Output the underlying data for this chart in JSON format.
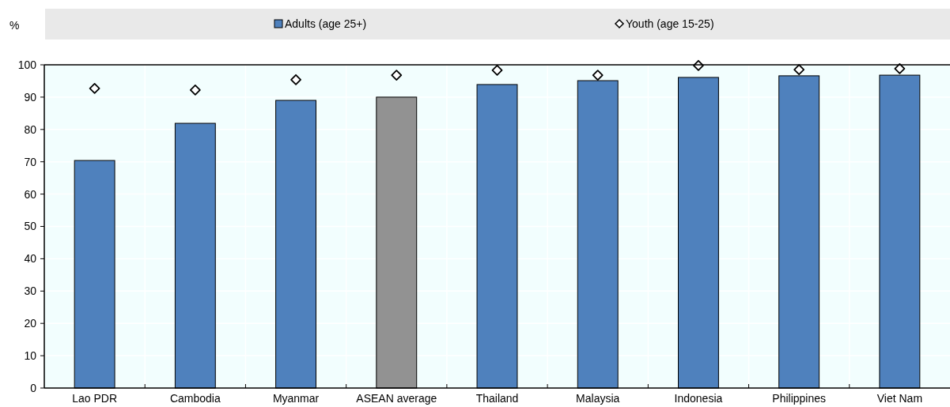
{
  "chart_data": {
    "type": "bar",
    "ylabel": "%",
    "categories": [
      "Lao PDR",
      "Cambodia",
      "Myanmar",
      "ASEAN average",
      "Thailand",
      "Malaysia",
      "Indonesia",
      "Philippines",
      "Viet Nam"
    ],
    "series": [
      {
        "name": "Adults (age 25+)",
        "color": "#4f81bd",
        "colors": [
          "#4f81bd",
          "#4f81bd",
          "#4f81bd",
          "#929292",
          "#4f81bd",
          "#4f81bd",
          "#4f81bd",
          "#4f81bd",
          "#4f81bd"
        ],
        "values": [
          70.4,
          81.9,
          89.0,
          90.0,
          93.9,
          95.1,
          96.1,
          96.6,
          96.8
        ]
      },
      {
        "name": "Youth (age 15-25)",
        "type": "scatter",
        "marker": "diamond",
        "color": "#ffffff",
        "x": [
          "Lao PDR",
          "Cambodia",
          "Myanmar",
          "ASEAN average",
          "Thailand",
          "Malaysia",
          "Indonesia",
          "Philippines",
          "Viet Nam"
        ],
        "values": [
          92.7,
          92.2,
          95.4,
          96.8,
          98.3,
          96.8,
          99.8,
          98.5,
          98.8
        ]
      }
    ],
    "ylim": [
      0,
      100
    ],
    "yticks": [
      0,
      10,
      20,
      30,
      40,
      50,
      60,
      70,
      80,
      90,
      100
    ],
    "grid": true,
    "legend": "top"
  }
}
